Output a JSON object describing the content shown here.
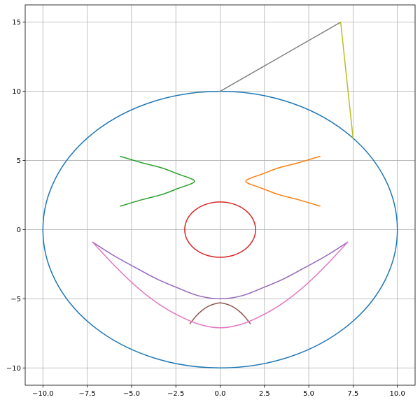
{
  "chart_data": {
    "type": "line",
    "title": "",
    "xlabel": "",
    "ylabel": "",
    "xlim": [
      -11,
      11
    ],
    "ylim": [
      -11.25,
      16.25
    ],
    "grid": true,
    "xticks": [
      -10.0,
      -7.5,
      -5.0,
      -2.5,
      0.0,
      2.5,
      5.0,
      7.5,
      10.0
    ],
    "xtick_labels": [
      "−10.0",
      "−7.5",
      "−5.0",
      "−2.5",
      "0.0",
      "2.5",
      "5.0",
      "7.5",
      "10.0"
    ],
    "yticks": [
      -10,
      -5,
      0,
      5,
      10,
      15
    ],
    "ytick_labels": [
      "−10",
      "−5",
      "0",
      "5",
      "10",
      "15"
    ],
    "series": [
      {
        "color": "#1f77b4",
        "shape": "circle",
        "center": [
          0,
          0
        ],
        "radius": 10
      },
      {
        "color": "#ff7f0e",
        "shape": "parabola-right",
        "x": [
          5.63,
          4.37,
          3.28,
          2.37,
          1.63,
          1.45,
          1.63,
          2.37,
          3.28,
          4.37,
          5.63
        ],
        "y": [
          1.7,
          2.18,
          2.54,
          2.98,
          3.32,
          3.5,
          3.68,
          4.02,
          4.46,
          4.82,
          5.3
        ]
      },
      {
        "color": "#2ca02c",
        "shape": "parabola-left",
        "x": [
          -5.63,
          -4.37,
          -3.28,
          -2.37,
          -1.63,
          -1.45,
          -1.63,
          -2.37,
          -3.28,
          -4.37,
          -5.63
        ],
        "y": [
          1.7,
          2.18,
          2.54,
          2.98,
          3.32,
          3.5,
          3.68,
          4.02,
          4.46,
          4.82,
          5.3
        ]
      },
      {
        "color": "#d62728",
        "shape": "ellipse",
        "center": [
          0,
          0
        ],
        "radius_x": 2,
        "radius_y": 2
      },
      {
        "color": "#9467bd",
        "shape": "parabola-up",
        "x": [
          -7.2,
          -6,
          -4.8,
          -3.6,
          -2.4,
          -1.2,
          0,
          1.2,
          2.4,
          3.6,
          4.8,
          6,
          7.2
        ],
        "y": [
          -0.9,
          -1.88,
          -2.73,
          -3.55,
          -4.21,
          -4.79,
          -5.0,
          -4.79,
          -4.21,
          -3.55,
          -2.73,
          -1.88,
          -0.9
        ]
      },
      {
        "color": "#8c564b",
        "shape": "parabola-down",
        "x": [
          -1.7,
          -1.36,
          -1.02,
          -0.68,
          -0.34,
          0,
          0.34,
          0.68,
          1.02,
          1.36,
          1.7
        ],
        "y": [
          -6.8,
          -6.25,
          -5.84,
          -5.55,
          -5.38,
          -5.3,
          -5.38,
          -5.55,
          -5.84,
          -6.25,
          -6.8
        ]
      },
      {
        "color": "#e377c2",
        "shape": "parabola-up",
        "x": [
          -7.2,
          -6,
          -4.8,
          -3.6,
          -2.4,
          -1.2,
          0,
          1.2,
          2.4,
          3.6,
          4.8,
          6,
          7.2
        ],
        "y": [
          -0.9,
          -2.55,
          -4.04,
          -5.26,
          -6.18,
          -6.84,
          -7.1,
          -6.84,
          -6.18,
          -5.26,
          -4.04,
          -2.55,
          -0.9
        ]
      },
      {
        "color": "#7f7f7f",
        "shape": "line",
        "x": [
          0,
          6.8
        ],
        "y": [
          10,
          15
        ]
      },
      {
        "color": "#bcbd22",
        "shape": "line",
        "x": [
          6.8,
          7.5
        ],
        "y": [
          15,
          6.6
        ]
      }
    ]
  }
}
